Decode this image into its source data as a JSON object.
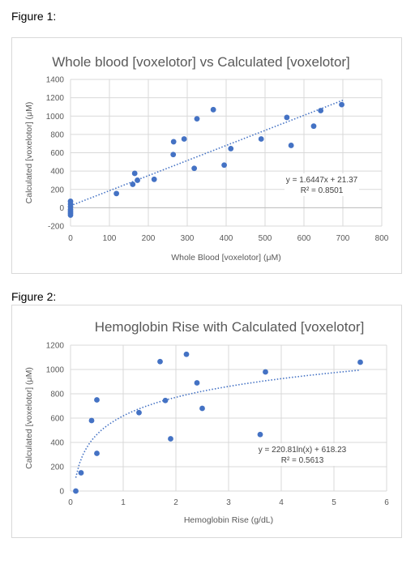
{
  "figures": [
    {
      "label": "Figure 1:"
    },
    {
      "label": "Figure 2:"
    }
  ],
  "chart_data": [
    {
      "type": "scatter",
      "title": "Whole blood [voxelotor] vs Calculated [voxelotor]",
      "xlabel": "Whole Blood [voxelotor] (μM)",
      "ylabel": "Calculated [voxelotor] (μM)",
      "xlim": [
        0,
        800
      ],
      "ylim": [
        -200,
        1400
      ],
      "xticks": [
        0,
        100,
        200,
        300,
        400,
        500,
        600,
        700,
        800
      ],
      "yticks": [
        -200,
        0,
        200,
        400,
        600,
        800,
        1000,
        1200,
        1400
      ],
      "gridlines": true,
      "marker_color": "#4472c4",
      "trendline": {
        "kind": "linear",
        "slope": 1.6447,
        "intercept": 21.37,
        "x_range": [
          0,
          700
        ],
        "equation": "y = 1.6447x + 21.37",
        "r2": "R² = 0.8501"
      },
      "series": [
        {
          "points": [
            [
              0,
              70
            ],
            [
              0,
              40
            ],
            [
              0,
              10
            ],
            [
              0,
              -20
            ],
            [
              0,
              -40
            ],
            [
              0,
              -60
            ],
            [
              0,
              -80
            ],
            [
              118,
              155
            ],
            [
              160,
              255
            ],
            [
              165,
              375
            ],
            [
              172,
              300
            ],
            [
              215,
              310
            ],
            [
              264,
              580
            ],
            [
              265,
              720
            ],
            [
              292,
              750
            ],
            [
              318,
              430
            ],
            [
              325,
              970
            ],
            [
              367,
              1070
            ],
            [
              395,
              465
            ],
            [
              412,
              645
            ],
            [
              490,
              750
            ],
            [
              556,
              985
            ],
            [
              567,
              680
            ],
            [
              625,
              890
            ],
            [
              643,
              1060
            ],
            [
              697,
              1125
            ]
          ]
        }
      ]
    },
    {
      "type": "scatter",
      "title": "Hemoglobin Rise with Calculated [voxelotor]",
      "xlabel": "Hemoglobin Rise (g/dL)",
      "ylabel": "Calculated [voxelotor] (μM)",
      "xlim": [
        0,
        6
      ],
      "ylim": [
        0,
        1200
      ],
      "xticks": [
        0,
        1,
        2,
        3,
        4,
        5,
        6
      ],
      "yticks": [
        0,
        200,
        400,
        600,
        800,
        1000,
        1200
      ],
      "gridlines": true,
      "marker_color": "#4472c4",
      "trendline": {
        "kind": "log",
        "a": 220.81,
        "b": 618.23,
        "x_range": [
          0.1,
          5.5
        ],
        "equation": "y = 220.81ln(x) + 618.23",
        "r2": "R² = 0.5613"
      },
      "series": [
        {
          "points": [
            [
              0.1,
              0
            ],
            [
              0.2,
              150
            ],
            [
              0.4,
              580
            ],
            [
              0.5,
              750
            ],
            [
              0.5,
              310
            ],
            [
              1.3,
              645
            ],
            [
              1.7,
              1065
            ],
            [
              1.8,
              745
            ],
            [
              1.9,
              430
            ],
            [
              2.2,
              1125
            ],
            [
              2.4,
              890
            ],
            [
              2.5,
              680
            ],
            [
              3.6,
              465
            ],
            [
              3.7,
              980
            ],
            [
              5.5,
              1060
            ]
          ]
        }
      ]
    }
  ]
}
